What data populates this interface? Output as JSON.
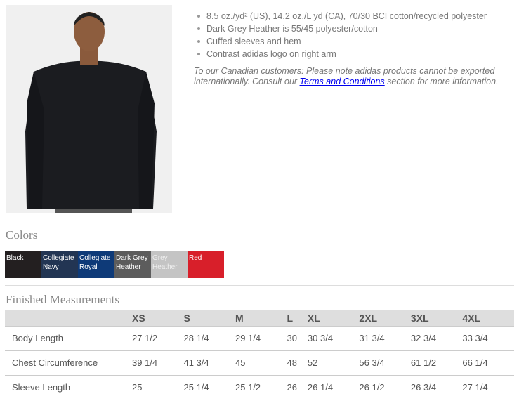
{
  "product": {
    "image": "model-wearing-black-crewneck-sweatshirt"
  },
  "features": [
    "8.5 oz./yd² (US), 14.2 oz./L yd (CA), 70/30 BCI cotton/recycled polyester",
    "Dark Grey Heather is 55/45 polyester/cotton",
    "Cuffed sleeves and hem",
    "Contrast adidas logo on right arm"
  ],
  "note": {
    "before": "To our Canadian customers: Please note adidas products cannot be exported internationally. Consult our ",
    "link": "Terms and Conditions",
    "after": " section for more information."
  },
  "colors_title": "Colors",
  "colors": [
    {
      "name": "Black",
      "hex": "#231f20"
    },
    {
      "name": "Collegiate Navy",
      "hex": "#223553"
    },
    {
      "name": "Collegiate Royal",
      "hex": "#0e3a78"
    },
    {
      "name": "Dark Grey Heather",
      "hex": "#5c5c5c"
    },
    {
      "name": "Grey Heather",
      "hex": "#c4c4c4"
    },
    {
      "name": "Red",
      "hex": "#d81f2a"
    }
  ],
  "measurements_title": "Finished Measurements",
  "measurements": {
    "sizes": [
      "XS",
      "S",
      "M",
      "L",
      "XL",
      "2XL",
      "3XL",
      "4XL"
    ],
    "rows": [
      {
        "label": "Body Length",
        "values": [
          "27 1/2",
          "28 1/4",
          "29 1/4",
          "30",
          "30 3/4",
          "31 3/4",
          "32 3/4",
          "33 3/4"
        ]
      },
      {
        "label": "Chest Circumference",
        "values": [
          "39 1/4",
          "41 3/4",
          "45",
          "48",
          "52",
          "56 3/4",
          "61 1/2",
          "66 1/4"
        ]
      },
      {
        "label": "Sleeve Length",
        "values": [
          "25",
          "25 1/4",
          "25 1/2",
          "26",
          "26 1/4",
          "26 1/2",
          "26 3/4",
          "27 1/4"
        ]
      }
    ]
  }
}
